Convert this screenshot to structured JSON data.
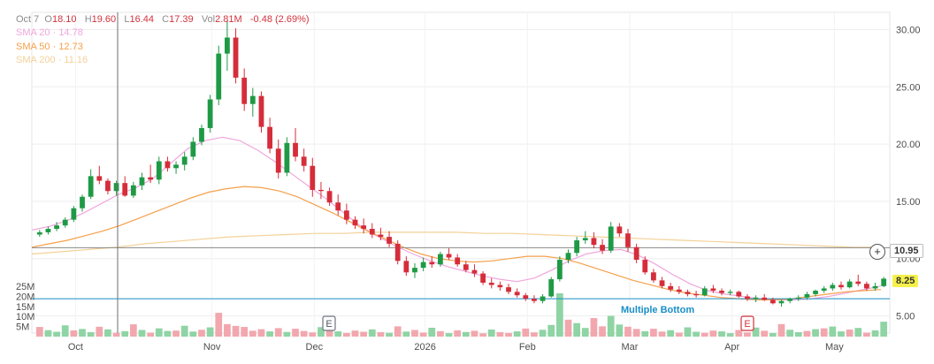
{
  "ohlc": {
    "date_label": "Oct 7",
    "open_label": "O",
    "open": "18.10",
    "high_label": "H",
    "high": "19.60",
    "low_label": "L",
    "low": "16.44",
    "close_label": "C",
    "close": "17.39",
    "vol_label": "Vol",
    "volume": "2.81M",
    "change": "-0.48 (2.69%)"
  },
  "sma": [
    {
      "label": "SMA 20",
      "value": "14.78",
      "color": "#f0a6dc"
    },
    {
      "label": "SMA 50",
      "value": "12.73",
      "color": "#f5a04a"
    },
    {
      "label": "SMA 200",
      "value": "11.16",
      "color": "#f3d198"
    }
  ],
  "markers": {
    "plus_icon": "plus-circle-icon",
    "reference_price": "10.95",
    "last_price": "8.25",
    "pattern_label": "Multiple Bottom",
    "earnings_letter": "E"
  },
  "colors": {
    "up": "#1e9a45",
    "down": "#d52d3a",
    "vol_up": "#8fd4a4",
    "vol_down": "#f2a7ae",
    "last_price_bg": "#f5f04a",
    "pattern_line": "#1a8fc7",
    "reference_line": "#888888"
  },
  "chart_data": {
    "type": "candlestick",
    "y_ticks": [
      "30.00",
      "25.00",
      "20.00",
      "15.00",
      "10.00",
      "5.00"
    ],
    "ylim": [
      3.5,
      31.5
    ],
    "volume_ticks": [
      "25M",
      "20M",
      "15M",
      "10M",
      "5M"
    ],
    "x_ticks": [
      "Oct",
      "Nov",
      "Dec",
      "2026",
      "Feb",
      "Mar",
      "Apr",
      "May"
    ],
    "series": [
      {
        "name": "SMA 20",
        "values": [
          12.5,
          12.8,
          13.3,
          14.0,
          14.8,
          15.6,
          16.2,
          17.0,
          18.3,
          19.6,
          20.3,
          20.6,
          20.3,
          19.5,
          18.5,
          17.4,
          16.3,
          15.2,
          14.0,
          12.8,
          11.9,
          11.1,
          10.4,
          9.8,
          9.3,
          8.9,
          8.5,
          8.2,
          8.0,
          8.3,
          9.0,
          9.8,
          10.4,
          10.7,
          10.8,
          10.3,
          9.5,
          8.6,
          7.8,
          7.2,
          6.9,
          6.7,
          6.5,
          6.4,
          6.4,
          6.5,
          6.7,
          7.0,
          7.3,
          7.6
        ]
      },
      {
        "name": "SMA 50",
        "values": [
          11.0,
          11.3,
          11.6,
          12.0,
          12.4,
          12.9,
          13.5,
          14.1,
          14.7,
          15.3,
          15.8,
          16.1,
          16.3,
          16.2,
          15.9,
          15.4,
          14.7,
          14.0,
          13.2,
          12.4,
          11.7,
          11.0,
          10.4,
          10.0,
          9.8,
          9.7,
          9.8,
          10.0,
          10.2,
          10.2,
          10.0,
          9.6,
          9.1,
          8.6,
          8.1,
          7.7,
          7.3,
          7.0,
          6.8,
          6.6,
          6.5,
          6.4,
          6.4,
          6.5,
          6.7,
          6.9,
          7.1,
          7.2,
          7.3
        ]
      },
      {
        "name": "SMA 200",
        "values": [
          10.4,
          10.6,
          10.8,
          11.0,
          11.3,
          11.5,
          11.7,
          11.9,
          12.0,
          12.1,
          12.2,
          12.2,
          12.3,
          12.3,
          12.3,
          12.3,
          12.2,
          12.2,
          12.1,
          12.0,
          11.9,
          11.8,
          11.7,
          11.6,
          11.5,
          11.4,
          11.3,
          11.2,
          11.1,
          11.0,
          11.0
        ]
      }
    ],
    "candles": [
      [
        12.1,
        12.5,
        11.9,
        12.3
      ],
      [
        12.3,
        12.8,
        12.1,
        12.6
      ],
      [
        12.6,
        13.2,
        12.4,
        12.9
      ],
      [
        12.9,
        13.6,
        12.7,
        13.4
      ],
      [
        13.4,
        14.6,
        13.2,
        14.4
      ],
      [
        14.4,
        15.6,
        14.1,
        15.4
      ],
      [
        15.4,
        17.8,
        15.2,
        17.2
      ],
      [
        17.2,
        18.1,
        16.5,
        16.8
      ],
      [
        16.8,
        17.0,
        15.6,
        15.9
      ],
      [
        15.9,
        16.8,
        15.5,
        16.6
      ],
      [
        16.6,
        17.2,
        15.4,
        15.5
      ],
      [
        15.5,
        16.7,
        15.3,
        16.4
      ],
      [
        16.4,
        17.5,
        16.0,
        17.1
      ],
      [
        17.1,
        18.2,
        16.6,
        16.9
      ],
      [
        16.9,
        18.9,
        16.5,
        18.5
      ],
      [
        18.5,
        18.9,
        17.6,
        17.9
      ],
      [
        17.9,
        18.5,
        17.4,
        18.2
      ],
      [
        18.2,
        19.3,
        17.7,
        18.9
      ],
      [
        18.9,
        20.6,
        18.6,
        20.2
      ],
      [
        20.2,
        21.7,
        19.9,
        21.4
      ],
      [
        21.4,
        24.3,
        21.0,
        23.9
      ],
      [
        23.9,
        28.6,
        23.4,
        27.9
      ],
      [
        27.9,
        30.8,
        26.4,
        29.3
      ],
      [
        29.3,
        30.1,
        25.3,
        25.8
      ],
      [
        25.8,
        26.6,
        22.9,
        23.5
      ],
      [
        23.5,
        24.9,
        22.4,
        24.2
      ],
      [
        24.2,
        24.6,
        21.0,
        21.5
      ],
      [
        21.5,
        22.3,
        19.2,
        19.6
      ],
      [
        19.6,
        20.4,
        17.0,
        17.5
      ],
      [
        17.5,
        20.6,
        17.2,
        20.1
      ],
      [
        20.1,
        21.4,
        18.5,
        18.9
      ],
      [
        18.9,
        19.6,
        17.6,
        18.1
      ],
      [
        18.1,
        18.8,
        15.4,
        16.0
      ],
      [
        16.0,
        16.7,
        15.2,
        15.9
      ],
      [
        15.9,
        16.2,
        14.6,
        14.9
      ],
      [
        14.9,
        15.6,
        13.8,
        14.2
      ],
      [
        14.2,
        14.8,
        13.0,
        13.4
      ],
      [
        13.4,
        13.7,
        12.6,
        12.9
      ],
      [
        12.9,
        13.5,
        12.2,
        12.6
      ],
      [
        12.6,
        13.1,
        11.8,
        12.1
      ],
      [
        12.1,
        12.7,
        11.6,
        11.9
      ],
      [
        11.9,
        12.4,
        11.0,
        11.3
      ],
      [
        11.3,
        11.6,
        9.5,
        9.8
      ],
      [
        9.8,
        10.2,
        8.5,
        8.8
      ],
      [
        8.8,
        9.6,
        8.3,
        9.2
      ],
      [
        9.2,
        10.1,
        8.9,
        9.7
      ],
      [
        9.7,
        10.2,
        9.2,
        9.5
      ],
      [
        9.5,
        10.6,
        9.3,
        10.4
      ],
      [
        10.4,
        10.9,
        9.9,
        10.1
      ],
      [
        10.1,
        10.4,
        9.3,
        9.5
      ],
      [
        9.5,
        9.8,
        8.8,
        9.0
      ],
      [
        9.0,
        9.5,
        8.4,
        8.7
      ],
      [
        8.7,
        8.9,
        7.7,
        7.9
      ],
      [
        7.9,
        8.3,
        7.4,
        7.7
      ],
      [
        7.7,
        8.0,
        7.2,
        7.5
      ],
      [
        7.5,
        7.8,
        6.9,
        7.1
      ],
      [
        7.1,
        7.4,
        6.6,
        6.8
      ],
      [
        6.8,
        7.0,
        6.3,
        6.5
      ],
      [
        6.5,
        6.8,
        6.1,
        6.3
      ],
      [
        6.3,
        6.9,
        6.1,
        6.7
      ],
      [
        6.7,
        8.4,
        6.6,
        8.2
      ],
      [
        8.2,
        10.2,
        8.0,
        9.9
      ],
      [
        9.9,
        10.8,
        9.6,
        10.5
      ],
      [
        10.5,
        11.9,
        10.2,
        11.6
      ],
      [
        11.6,
        12.4,
        11.3,
        11.8
      ],
      [
        11.8,
        12.3,
        10.9,
        11.2
      ],
      [
        11.2,
        11.7,
        10.4,
        10.7
      ],
      [
        10.7,
        13.2,
        10.5,
        12.8
      ],
      [
        12.8,
        13.1,
        11.9,
        12.2
      ],
      [
        12.2,
        12.6,
        10.6,
        11.0
      ],
      [
        11.0,
        11.3,
        9.6,
        9.9
      ],
      [
        9.9,
        10.2,
        8.6,
        8.8
      ],
      [
        8.8,
        9.1,
        7.9,
        8.1
      ],
      [
        8.1,
        8.4,
        7.4,
        7.6
      ],
      [
        7.6,
        7.9,
        7.1,
        7.3
      ],
      [
        7.3,
        7.6,
        6.9,
        7.1
      ],
      [
        7.1,
        7.3,
        6.7,
        6.9
      ],
      [
        6.9,
        7.2,
        6.6,
        6.8
      ],
      [
        6.8,
        7.6,
        6.7,
        7.4
      ],
      [
        7.4,
        7.7,
        7.0,
        7.2
      ],
      [
        7.2,
        7.4,
        6.8,
        7.0
      ],
      [
        7.0,
        7.3,
        6.8,
        7.1
      ],
      [
        7.1,
        7.2,
        6.6,
        6.7
      ],
      [
        6.7,
        6.9,
        6.3,
        6.5
      ],
      [
        6.5,
        6.8,
        6.2,
        6.6
      ],
      [
        6.6,
        6.9,
        6.3,
        6.4
      ],
      [
        6.4,
        6.6,
        6.0,
        6.1
      ],
      [
        6.1,
        6.4,
        5.8,
        6.3
      ],
      [
        6.3,
        6.6,
        6.1,
        6.5
      ],
      [
        6.5,
        6.8,
        6.3,
        6.6
      ],
      [
        6.6,
        7.1,
        6.4,
        6.9
      ],
      [
        6.9,
        7.3,
        6.7,
        7.2
      ],
      [
        7.2,
        7.6,
        7.0,
        7.4
      ],
      [
        7.4,
        7.9,
        7.2,
        7.7
      ],
      [
        7.7,
        8.0,
        7.3,
        7.5
      ],
      [
        7.5,
        8.2,
        7.4,
        8.0
      ],
      [
        8.0,
        8.6,
        7.6,
        7.8
      ],
      [
        7.8,
        8.0,
        7.2,
        7.4
      ],
      [
        7.4,
        7.9,
        7.2,
        7.6
      ],
      [
        7.6,
        8.4,
        7.5,
        8.25
      ]
    ],
    "volume": [
      [
        4.8,
        0
      ],
      [
        3.2,
        1
      ],
      [
        2.4,
        1
      ],
      [
        5.6,
        1
      ],
      [
        3.1,
        0
      ],
      [
        3.8,
        1
      ],
      [
        2.2,
        1
      ],
      [
        4.9,
        0
      ],
      [
        3.6,
        1
      ],
      [
        1.9,
        0
      ],
      [
        2.7,
        1
      ],
      [
        6.1,
        0
      ],
      [
        3.3,
        1
      ],
      [
        2.0,
        0
      ],
      [
        4.1,
        1
      ],
      [
        2.8,
        1
      ],
      [
        3.0,
        0
      ],
      [
        5.4,
        1
      ],
      [
        2.5,
        1
      ],
      [
        3.4,
        0
      ],
      [
        4.6,
        1
      ],
      [
        11.8,
        0
      ],
      [
        6.2,
        0
      ],
      [
        5.3,
        0
      ],
      [
        4.8,
        0
      ],
      [
        2.9,
        0
      ],
      [
        3.7,
        0
      ],
      [
        2.6,
        1
      ],
      [
        4.2,
        0
      ],
      [
        2.3,
        1
      ],
      [
        3.9,
        0
      ],
      [
        2.8,
        0
      ],
      [
        2.1,
        0
      ],
      [
        4.7,
        1
      ],
      [
        3.2,
        0
      ],
      [
        2.6,
        1
      ],
      [
        1.8,
        0
      ],
      [
        3.0,
        0
      ],
      [
        2.4,
        0
      ],
      [
        3.6,
        1
      ],
      [
        2.2,
        0
      ],
      [
        1.9,
        1
      ],
      [
        5.1,
        0
      ],
      [
        2.5,
        1
      ],
      [
        3.3,
        0
      ],
      [
        2.0,
        0
      ],
      [
        4.4,
        1
      ],
      [
        2.7,
        0
      ],
      [
        1.7,
        1
      ],
      [
        3.1,
        0
      ],
      [
        2.3,
        1
      ],
      [
        2.9,
        0
      ],
      [
        1.6,
        0
      ],
      [
        3.5,
        1
      ],
      [
        2.2,
        0
      ],
      [
        1.8,
        0
      ],
      [
        2.6,
        1
      ],
      [
        4.0,
        0
      ],
      [
        2.1,
        0
      ],
      [
        3.4,
        1
      ],
      [
        5.8,
        1
      ],
      [
        21.5,
        1
      ],
      [
        8.4,
        0
      ],
      [
        6.7,
        1
      ],
      [
        4.3,
        1
      ],
      [
        9.2,
        0
      ],
      [
        5.1,
        0
      ],
      [
        10.3,
        1
      ],
      [
        6.0,
        1
      ],
      [
        4.9,
        0
      ],
      [
        3.8,
        0
      ],
      [
        2.7,
        1
      ],
      [
        3.9,
        0
      ],
      [
        2.5,
        0
      ],
      [
        3.2,
        1
      ],
      [
        2.0,
        0
      ],
      [
        4.6,
        1
      ],
      [
        2.4,
        1
      ],
      [
        1.9,
        0
      ],
      [
        3.0,
        0
      ],
      [
        2.6,
        1
      ],
      [
        1.7,
        1
      ],
      [
        3.3,
        0
      ],
      [
        2.1,
        0
      ],
      [
        4.5,
        1
      ],
      [
        2.9,
        0
      ],
      [
        1.8,
        1
      ],
      [
        6.2,
        0
      ],
      [
        3.4,
        1
      ],
      [
        2.2,
        1
      ],
      [
        2.8,
        0
      ],
      [
        3.7,
        1
      ],
      [
        4.1,
        0
      ],
      [
        5.0,
        1
      ],
      [
        2.6,
        1
      ],
      [
        3.5,
        0
      ],
      [
        4.3,
        1
      ],
      [
        2.0,
        0
      ],
      [
        3.1,
        1
      ],
      [
        7.4,
        1
      ]
    ],
    "reference_price": 10.95,
    "pattern_price": 6.5
  }
}
